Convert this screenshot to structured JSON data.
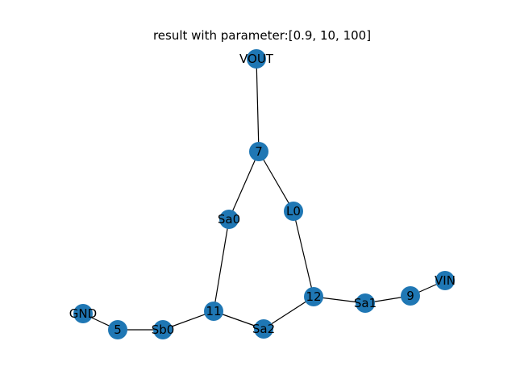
{
  "title": "result with parameter:[0.9, 10, 100]",
  "node_color": "#1f77b4",
  "edge_color": "#000000",
  "nodes": [
    {
      "id": "VOUT",
      "label": "VOUT"
    },
    {
      "id": "7",
      "label": "7"
    },
    {
      "id": "Sa0",
      "label": "Sa0"
    },
    {
      "id": "L0",
      "label": "L0"
    },
    {
      "id": "12",
      "label": "12"
    },
    {
      "id": "Sa1",
      "label": "Sa1"
    },
    {
      "id": "9",
      "label": "9"
    },
    {
      "id": "VIN",
      "label": "VIN"
    },
    {
      "id": "11",
      "label": "11"
    },
    {
      "id": "Sa2",
      "label": "Sa2"
    },
    {
      "id": "Sb0",
      "label": "Sb0"
    },
    {
      "id": "5",
      "label": "5"
    },
    {
      "id": "GND",
      "label": "GND"
    }
  ],
  "edges": [
    [
      "VOUT",
      "7"
    ],
    [
      "7",
      "Sa0"
    ],
    [
      "7",
      "L0"
    ],
    [
      "Sa0",
      "11"
    ],
    [
      "L0",
      "12"
    ],
    [
      "12",
      "Sa2"
    ],
    [
      "12",
      "Sa1"
    ],
    [
      "Sa1",
      "9"
    ],
    [
      "9",
      "VIN"
    ],
    [
      "11",
      "Sa2"
    ],
    [
      "11",
      "Sb0"
    ],
    [
      "Sb0",
      "5"
    ],
    [
      "5",
      "GND"
    ]
  ]
}
